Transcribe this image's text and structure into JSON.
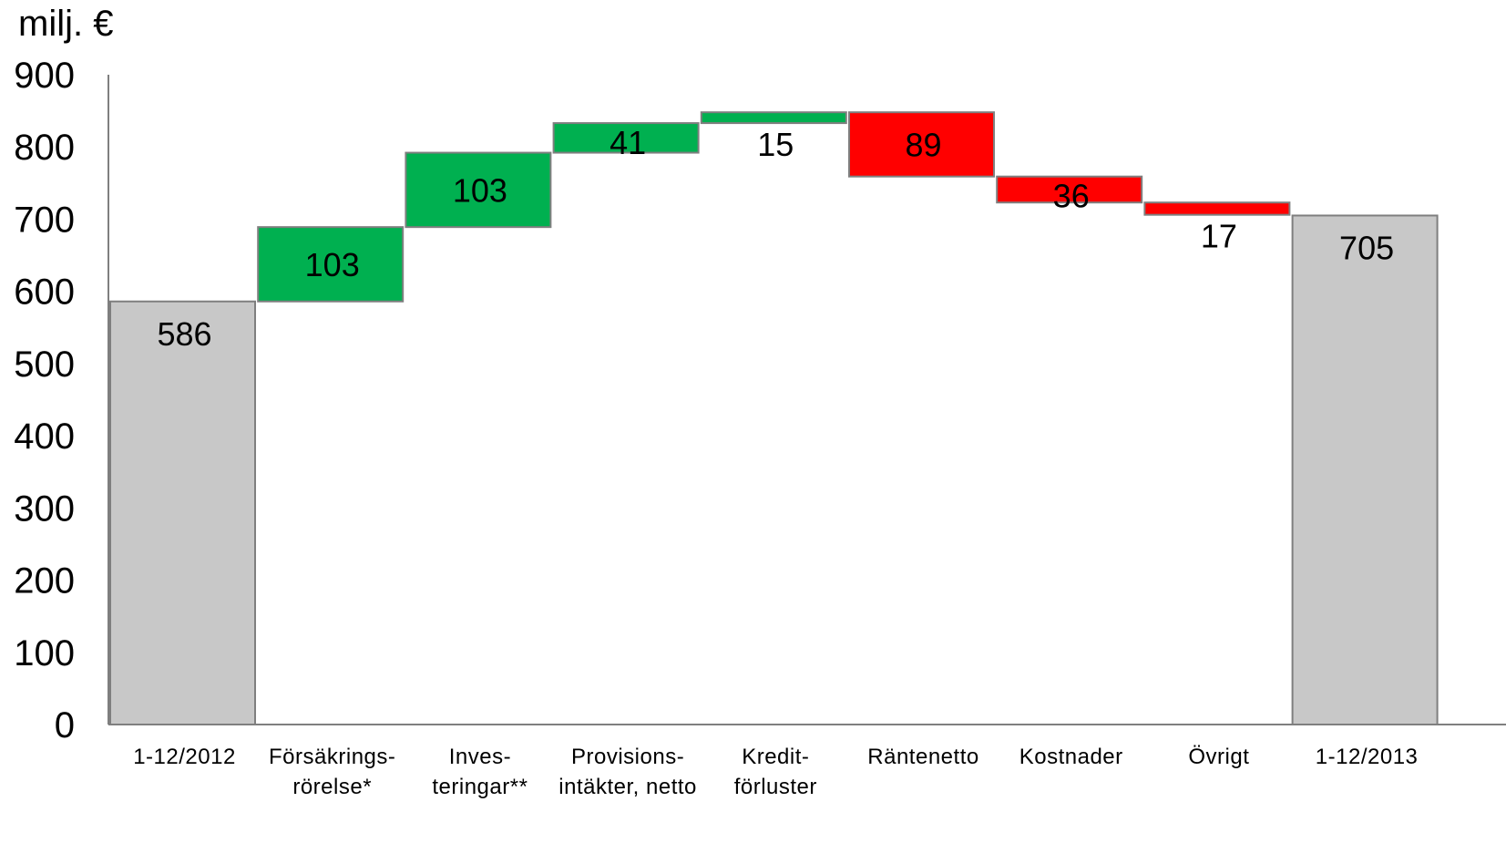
{
  "chart_data": {
    "type": "bar",
    "subtype": "waterfall",
    "unit_label": "milj. €",
    "ylim": [
      0,
      900
    ],
    "yticks": [
      {
        "value": 0,
        "label": "0"
      },
      {
        "value": 100,
        "label": "100"
      },
      {
        "value": 200,
        "label": "200"
      },
      {
        "value": 300,
        "label": "300"
      },
      {
        "value": 400,
        "label": "400"
      },
      {
        "value": 500,
        "label": "500"
      },
      {
        "value": 600,
        "label": "600"
      },
      {
        "value": 700,
        "label": "700"
      },
      {
        "value": 800,
        "label": "800"
      },
      {
        "value": 900,
        "label": "900"
      }
    ],
    "grid": false,
    "legend": "none",
    "colors": {
      "total": "#c8c8c8",
      "increase": "#00b050",
      "decrease": "#ff0000",
      "border": "#7f7f7f",
      "axis": "#7f7f7f"
    },
    "bars": [
      {
        "category": [
          "1-12/2012"
        ],
        "kind": "total",
        "value": 586,
        "label": "586"
      },
      {
        "category": [
          "Försäkrings-",
          "rörelse*"
        ],
        "kind": "increase",
        "value": 103,
        "label": "103"
      },
      {
        "category": [
          "Inves-",
          "teringar**"
        ],
        "kind": "increase",
        "value": 103,
        "label": "103"
      },
      {
        "category": [
          "Provisions-",
          "intäkter, netto"
        ],
        "kind": "increase",
        "value": 41,
        "label": "41"
      },
      {
        "category": [
          "Kredit-",
          "förluster"
        ],
        "kind": "increase",
        "value": 15,
        "label": "15"
      },
      {
        "category": [
          "Räntenetto"
        ],
        "kind": "decrease",
        "value": 89,
        "label": "89"
      },
      {
        "category": [
          "Kostnader"
        ],
        "kind": "decrease",
        "value": 36,
        "label": "36"
      },
      {
        "category": [
          "Övrigt"
        ],
        "kind": "decrease",
        "value": 17,
        "label": "17"
      },
      {
        "category": [
          "1-12/2013"
        ],
        "kind": "total",
        "value": 705,
        "label": "705"
      }
    ]
  }
}
